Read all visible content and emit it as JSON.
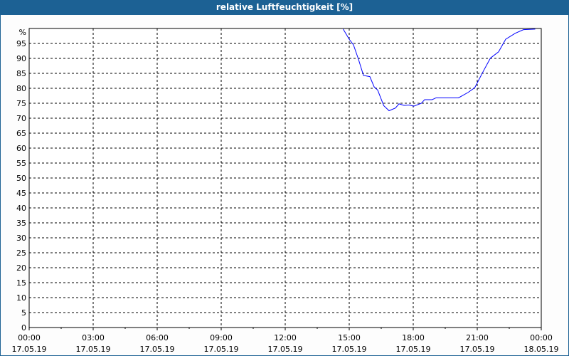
{
  "chart_data": {
    "type": "line",
    "title": "relative Luftfeuchtigkeit [%]",
    "ylabel": "%",
    "ylim": [
      0,
      100
    ],
    "yticks": [
      0,
      5,
      10,
      15,
      20,
      25,
      30,
      35,
      40,
      45,
      50,
      55,
      60,
      65,
      70,
      75,
      80,
      85,
      90,
      95
    ],
    "xlim": [
      "17.05.19 00:00",
      "18.05.19 00:00"
    ],
    "xticks": [
      {
        "time": "00:00",
        "date": "17.05.19"
      },
      {
        "time": "03:00",
        "date": "17.05.19"
      },
      {
        "time": "06:00",
        "date": "17.05.19"
      },
      {
        "time": "09:00",
        "date": "17.05.19"
      },
      {
        "time": "12:00",
        "date": "17.05.19"
      },
      {
        "time": "15:00",
        "date": "17.05.19"
      },
      {
        "time": "18:00",
        "date": "17.05.19"
      },
      {
        "time": "21:00",
        "date": "17.05.19"
      },
      {
        "time": "00:00",
        "date": "18.05.19"
      }
    ],
    "grid": true,
    "line_color": "#0000ff",
    "series": [
      {
        "x": [
          "14:43",
          "15:00",
          "15:12",
          "15:26",
          "15:40",
          "15:58",
          "16:10",
          "16:20",
          "16:37",
          "16:52",
          "17:10",
          "17:20",
          "17:34",
          "17:50",
          "18:01",
          "18:23",
          "18:32",
          "18:53",
          "19:04",
          "20:07",
          "20:34",
          "20:53",
          "21:17",
          "21:37",
          "22:00",
          "22:20",
          "22:47",
          "23:10",
          "23:43"
        ],
        "y": [
          99.8,
          96.4,
          94.5,
          89.7,
          84.3,
          83.9,
          80.5,
          79.4,
          74.2,
          72.5,
          73.4,
          74.8,
          74.3,
          74.4,
          74.0,
          75.0,
          76.2,
          76.2,
          76.8,
          76.8,
          78.6,
          80.2,
          85.7,
          90.1,
          92.2,
          96.4,
          98.4,
          99.6,
          99.8
        ]
      }
    ]
  }
}
